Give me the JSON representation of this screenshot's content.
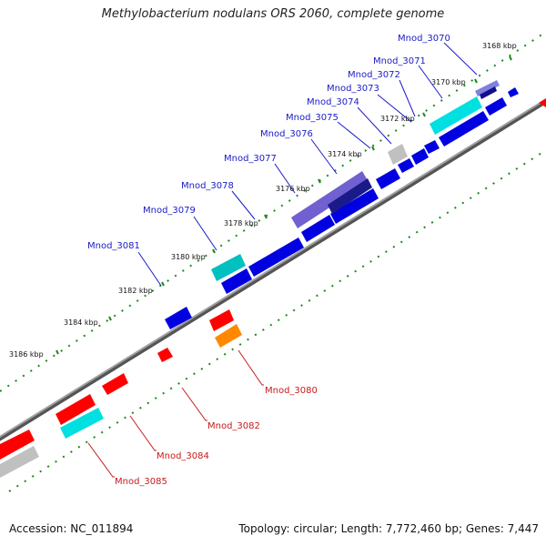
{
  "title": "Methylobacterium nodulans ORS 2060, complete genome",
  "footer": {
    "accession": "Accession: NC_011894",
    "summary": "Topology: circular; Length: 7,772,460 bp; Genes: 7,447"
  },
  "colors": {
    "forward_label": "#1a1ac8",
    "reverse_label": "#c81a1a",
    "backbone": "#808080",
    "tick": "#1a8a1a"
  },
  "kbp_ticks": [
    "3168 kbp",
    "3170 kbp",
    "3172 kbp",
    "3174 kbp",
    "3176 kbp",
    "3178 kbp",
    "3180 kbp",
    "3182 kbp",
    "3184 kbp",
    "3186 kbp"
  ],
  "forward_genes": [
    {
      "name": "Mnod_3070",
      "color": "#8080e0"
    },
    {
      "name": "Mnod_3071",
      "color": "#00e0e0"
    },
    {
      "name": "Mnod_3072",
      "color": "#0000e0"
    },
    {
      "name": "Mnod_3073",
      "color": "#0000e0"
    },
    {
      "name": "Mnod_3074",
      "color": "#0000e0"
    },
    {
      "name": "Mnod_3075",
      "color": "#c0c0c0"
    },
    {
      "name": "Mnod_3076",
      "color": "#0000e0"
    },
    {
      "name": "Mnod_3077",
      "color": "#7060d0"
    },
    {
      "name": "Mnod_3078",
      "color": "#0000e0"
    },
    {
      "name": "Mnod_3079",
      "color": "#00c0c0"
    },
    {
      "name": "Mnod_3081",
      "color": "#0000e0"
    }
  ],
  "reverse_genes": [
    {
      "name": "Mnod_3080",
      "color": "#ff8800"
    },
    {
      "name": "Mnod_3082",
      "color": "#ff0000"
    },
    {
      "name": "Mnod_3084",
      "color": "#ff0000"
    },
    {
      "name": "Mnod_3085",
      "color": "#00e0e0"
    }
  ]
}
